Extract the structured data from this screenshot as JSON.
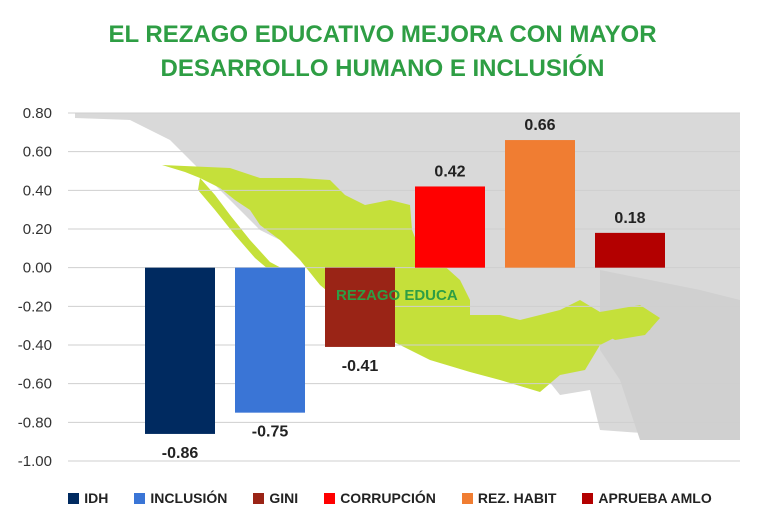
{
  "chart_data": {
    "type": "bar",
    "title_lines": [
      "EL REZAGO EDUCATIVO MEJORA CON MAYOR",
      "DESARROLLO HUMANO E INCLUSIÓN"
    ],
    "annotation": "REZAGO EDUCA",
    "ylim": [
      -1.0,
      0.8
    ],
    "yticks": [
      "0.80",
      "0.60",
      "0.40",
      "0.20",
      "0.00",
      "-0.20",
      "-0.40",
      "-0.60",
      "-0.80",
      "-1.00"
    ],
    "grid": true,
    "legend_position": "bottom",
    "series": [
      {
        "name": "IDH",
        "value": -0.86,
        "label": "-0.86",
        "color": "#002a60"
      },
      {
        "name": "INCLUSIÓN",
        "value": -0.75,
        "label": "-0.75",
        "color": "#3a75d6"
      },
      {
        "name": "GINI",
        "value": -0.41,
        "label": "-0.41",
        "color": "#9a2416"
      },
      {
        "name": "CORRUPCIÓN",
        "value": 0.42,
        "label": "0.42",
        "color": "#ff0000"
      },
      {
        "name": "REZ. HABIT",
        "value": 0.66,
        "label": "0.66",
        "color": "#f07d32"
      },
      {
        "name": "APRUEBA AMLO",
        "value": 0.18,
        "label": "0.18",
        "color": "#b30000"
      }
    ]
  },
  "colors": {
    "title": "#2e9e44",
    "map_land": "#c5e03a",
    "map_bg": "#d8d8d8",
    "annotation": "#2e9e44"
  }
}
